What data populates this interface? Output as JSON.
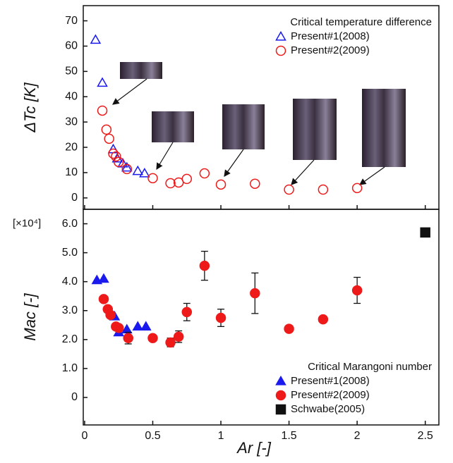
{
  "chart_data": [
    {
      "type": "scatter",
      "y_label": "ΔTc [K]",
      "legend_title": "Critical temperature difference",
      "legend": "upper right",
      "xlim": [
        -0.01,
        2.6
      ],
      "xticks": [
        0,
        0.5,
        1,
        1.5,
        2,
        2.5
      ],
      "ylim": [
        -4.5,
        76
      ],
      "yticks": [
        0,
        10,
        20,
        30,
        40,
        50,
        60,
        70
      ],
      "series": [
        {
          "name": "Present#1(2008)",
          "color": "#1a1aee",
          "marker": "triangle-open",
          "x": [
            0.08,
            0.13,
            0.21,
            0.24,
            0.28,
            0.31,
            0.39,
            0.44
          ],
          "values": [
            62.5,
            45.5,
            19.2,
            15.6,
            13.6,
            12,
            10.6,
            9.7
          ]
        },
        {
          "name": "Present#2(2009)",
          "color": "#ee1a1a",
          "marker": "circle-open",
          "x": [
            0.13,
            0.16,
            0.18,
            0.21,
            0.23,
            0.25,
            0.31,
            0.5,
            0.63,
            0.69,
            0.75,
            0.88,
            1,
            1.25,
            1.5,
            1.75,
            2
          ],
          "values": [
            34.5,
            27,
            23.4,
            17.5,
            16.4,
            14.2,
            11.4,
            7.8,
            5.8,
            6.1,
            7.5,
            9.7,
            5.3,
            5.6,
            3.3,
            3.3,
            3.9
          ]
        }
      ]
    },
    {
      "type": "scatter",
      "x_label": "Ar [-]",
      "y_label": "Mac [-]",
      "annotation": "[×10⁴]",
      "legend_title": "Critical Marangoni number",
      "legend": "lower right",
      "xlim": [
        -0.01,
        2.6
      ],
      "xticks": [
        0,
        {
          "value": 0.5,
          "label": "0.5"
        },
        1,
        {
          "value": 1.5,
          "label": "1.5"
        },
        2,
        {
          "value": 2.5,
          "label": "2.5"
        }
      ],
      "ylim": [
        -0.95,
        6.5
      ],
      "yticks": [
        0,
        {
          "value": 1,
          "label": "1.0"
        },
        {
          "value": 2,
          "label": "2.0"
        },
        {
          "value": 3,
          "label": "3.0"
        },
        {
          "value": 4,
          "label": "4.0"
        },
        {
          "value": 5,
          "label": "5.0"
        },
        {
          "value": 6,
          "label": "6.0"
        }
      ],
      "series": [
        {
          "name": "Present#1(2008)",
          "color": "#1a1aee",
          "marker": "triangle",
          "x": [
            0.09,
            0.14,
            0.22,
            0.25,
            0.31,
            0.39,
            0.45
          ],
          "values": [
            4.05,
            4.1,
            2.8,
            2.25,
            2.35,
            2.45,
            2.45
          ]
        },
        {
          "name": "Present#2(2009)",
          "color": "#ee1a1a",
          "marker": "circle",
          "x": [
            0.14,
            0.17,
            0.19,
            0.23,
            0.25,
            0.32,
            0.5,
            0.63,
            0.69,
            0.75,
            0.88,
            1,
            1.25,
            1.5,
            1.75,
            2
          ],
          "values": [
            3.4,
            3.05,
            2.85,
            2.45,
            2.4,
            2.05,
            2.05,
            1.9,
            2.1,
            2.95,
            4.55,
            2.75,
            3.6,
            2.37,
            2.7,
            3.7
          ],
          "errors": [
            0.1,
            0.1,
            0.1,
            0.1,
            0.1,
            0.2,
            0.05,
            0.15,
            0.2,
            0.3,
            0.5,
            0.3,
            0.7,
            0.07,
            0.1,
            0.45
          ]
        },
        {
          "name": "Schwabe(2005)",
          "color": "#111111",
          "marker": "square",
          "x": [
            2.5
          ],
          "values": [
            5.7
          ]
        }
      ]
    }
  ]
}
